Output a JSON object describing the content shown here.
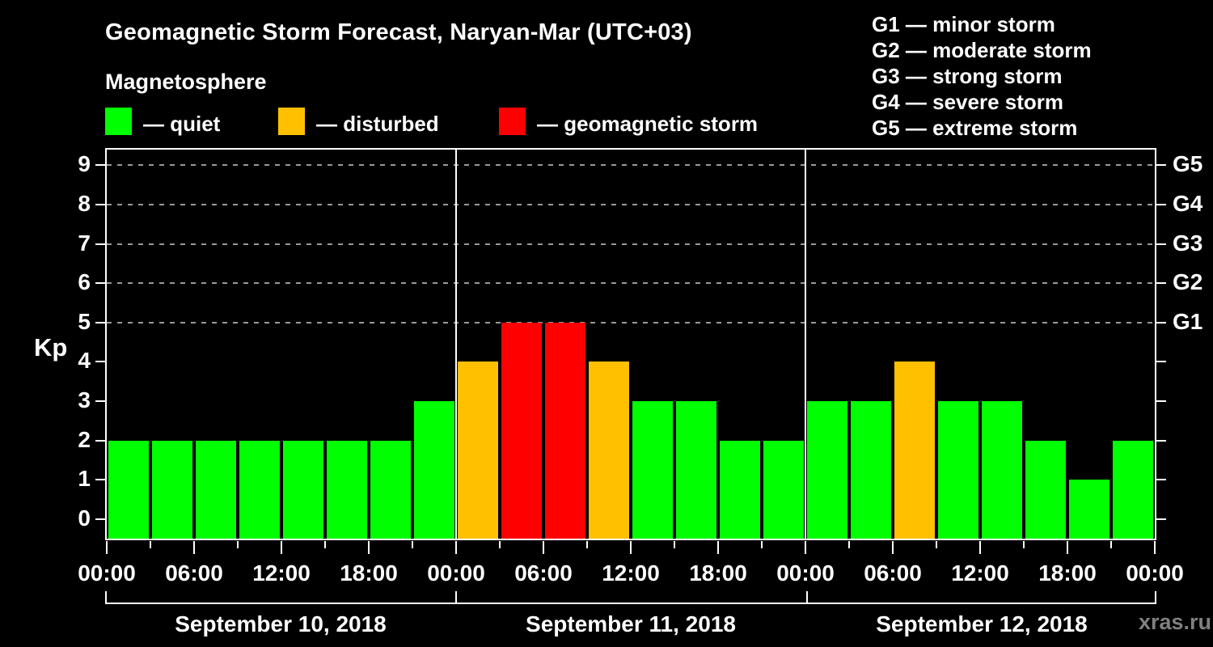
{
  "header": {
    "title": "Geomagnetic Storm Forecast, Naryan-Mar (UTC+03)",
    "subtitle": "Magnetosphere",
    "legend": [
      {
        "status": "quiet",
        "label": "— quiet",
        "color": "#00ff00"
      },
      {
        "status": "disturbed",
        "label": "— disturbed",
        "color": "#ffc000"
      },
      {
        "status": "storm",
        "label": "— geomagnetic storm",
        "color": "#ff0000"
      }
    ],
    "g_scale_legend": [
      "G1 — minor storm",
      "G2 — moderate storm",
      "G3 — strong storm",
      "G4 — severe storm",
      "G5 — extreme storm"
    ]
  },
  "watermark": "xras.ru",
  "chart_data": {
    "type": "bar",
    "title": "Geomagnetic Storm Forecast, Naryan-Mar (UTC+03)",
    "subtitle": "Magnetosphere",
    "ylabel": "Kp",
    "ylim": [
      -0.5,
      9.4
    ],
    "y_ticks": [
      0,
      1,
      2,
      3,
      4,
      5,
      6,
      7,
      8,
      9
    ],
    "gridline_levels": [
      5,
      6,
      7,
      8,
      9
    ],
    "right_axis_labels": [
      {
        "level": 5,
        "label": "G1"
      },
      {
        "level": 6,
        "label": "G2"
      },
      {
        "level": 7,
        "label": "G3"
      },
      {
        "level": 8,
        "label": "G4"
      },
      {
        "level": 9,
        "label": "G5"
      }
    ],
    "x_tick_labels": [
      "00:00",
      "06:00",
      "12:00",
      "18:00",
      "00:00",
      "06:00",
      "12:00",
      "18:00",
      "00:00",
      "06:00",
      "12:00",
      "18:00",
      "00:00"
    ],
    "interval_hours": 3,
    "minor_tick_hours": 3,
    "major_tick_hours": 6,
    "days": [
      {
        "date": "September 10, 2018",
        "kp": [
          2,
          2,
          2,
          2,
          2,
          2,
          2,
          3
        ]
      },
      {
        "date": "September 11, 2018",
        "kp": [
          4,
          5,
          5,
          4,
          3,
          3,
          2,
          2
        ]
      },
      {
        "date": "September 12, 2018",
        "kp": [
          3,
          3,
          4,
          3,
          3,
          2,
          1,
          2
        ]
      }
    ],
    "status_thresholds": {
      "disturbed": 4,
      "storm_min": 5
    },
    "grid_on": true,
    "legend_position": "top",
    "colors": {
      "quiet": "#00ff00",
      "disturbed": "#ffc000",
      "storm": "#ff0000",
      "background": "#000000",
      "text": "#ffffff",
      "axis": "#ffffff",
      "grid": "#999999",
      "watermark": "#808080"
    }
  }
}
